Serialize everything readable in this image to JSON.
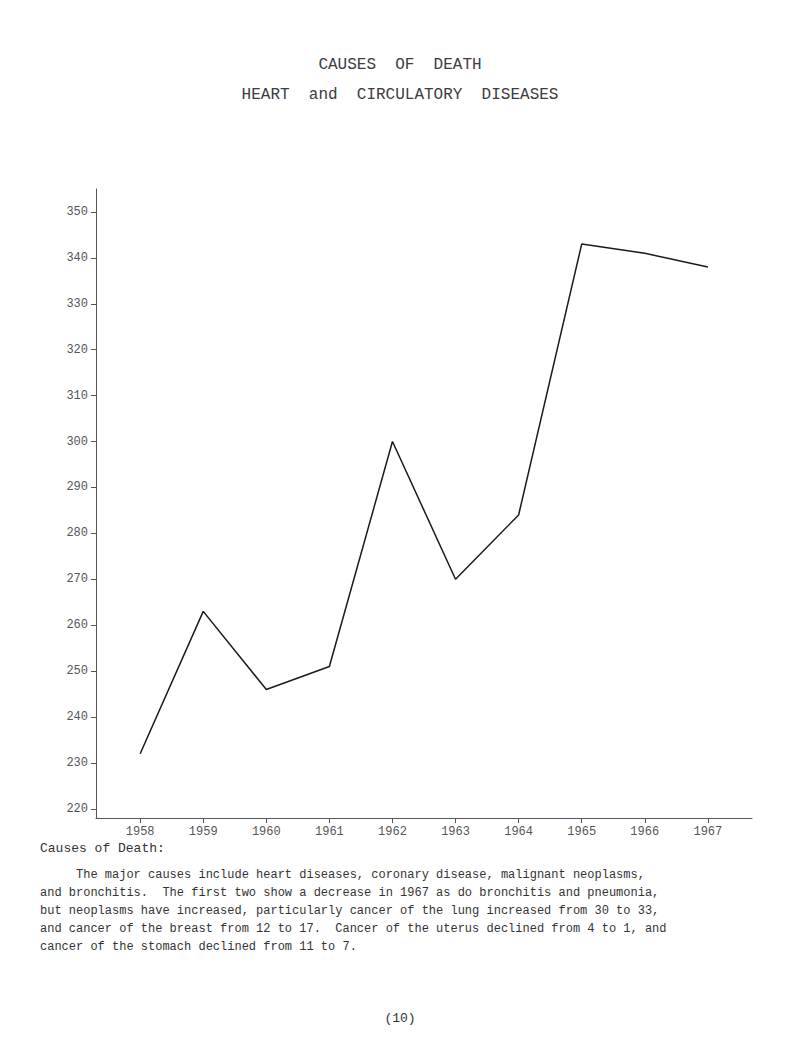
{
  "chart_data": {
    "type": "line",
    "title": "CAUSES  OF  DEATH",
    "subtitle": "HEART  and  CIRCULATORY  DISEASES",
    "x": [
      1958,
      1959,
      1960,
      1961,
      1962,
      1963,
      1964,
      1965,
      1966,
      1967
    ],
    "values": [
      232,
      263,
      246,
      251,
      300,
      270,
      284,
      343,
      341,
      338
    ],
    "color": "#1a1a1a",
    "xlim": [
      1957.3,
      1967.7
    ],
    "xticks": [
      1958,
      1959,
      1960,
      1961,
      1962,
      1963,
      1964,
      1965,
      1966,
      1967
    ],
    "ylim": [
      218,
      355
    ],
    "yticks": [
      220,
      230,
      240,
      250,
      260,
      270,
      280,
      290,
      300,
      310,
      320,
      330,
      340,
      350
    ],
    "grid": false,
    "annotations": [
      "Causes of Death:",
      "     The major causes include heart diseases, coronary disease, malignant neoplasms,\nand bronchitis.  The first two show a decrease in 1967 as do bronchitis and pneumonia,\nbut neoplasms have increased, particularly cancer of the lung increased from 30 to 33,\nand cancer of the breast from 12 to 17.  Cancer of the uterus declined from 4 to 1, and\ncancer of the stomach declined from 11 to 7.",
      "(10)"
    ]
  }
}
